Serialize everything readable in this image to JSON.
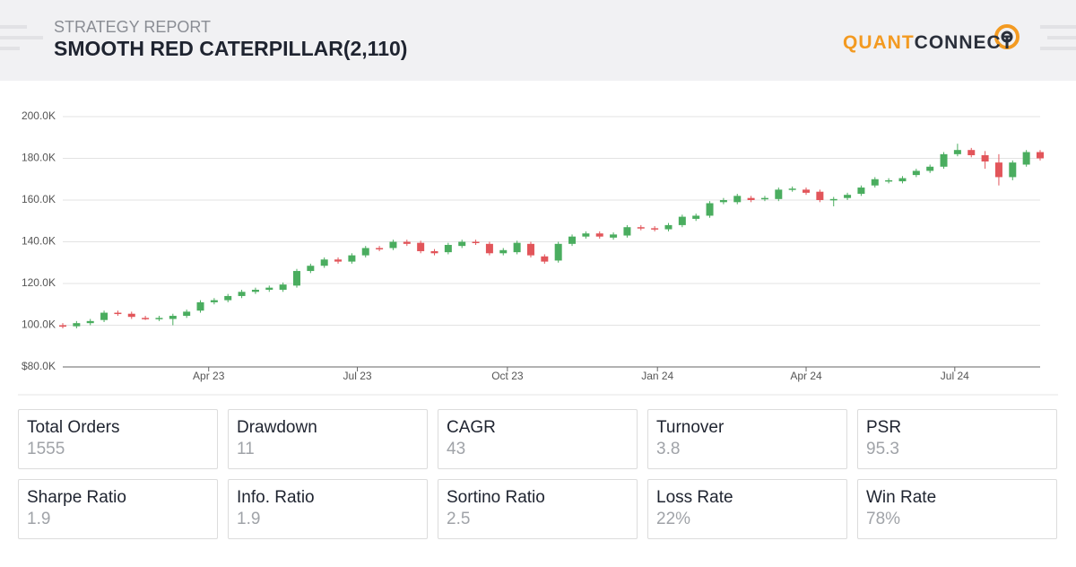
{
  "header": {
    "subtitle": "STRATEGY REPORT",
    "title": "SMOOTH RED CATERPILLAR(2,110)",
    "logo_a": "QUANT",
    "logo_b": "CONNECT"
  },
  "chart_data": {
    "type": "candlestick",
    "up_color": "#4aad5f",
    "down_color": "#e2555a",
    "grid": true,
    "x": [
      0,
      1,
      2,
      3,
      4,
      5,
      6,
      7,
      8,
      9,
      10,
      11,
      12,
      13,
      14,
      15,
      16,
      17,
      18,
      19,
      20,
      21,
      22,
      23,
      24,
      25,
      26,
      27,
      28,
      29,
      30,
      31,
      32,
      33,
      34,
      35,
      36,
      37,
      38,
      39,
      40,
      41,
      42,
      43,
      44,
      45,
      46,
      47,
      48,
      49,
      50,
      51,
      52,
      53,
      54,
      55,
      56,
      57,
      58,
      59,
      60,
      61,
      62,
      63,
      64,
      65,
      66,
      67,
      68,
      69,
      70,
      71
    ],
    "open": [
      100000,
      99500,
      101000,
      102500,
      106000,
      105500,
      103500,
      103000,
      103000,
      104500,
      107000,
      111000,
      112000,
      114000,
      116000,
      117000,
      117000,
      119000,
      126000,
      128500,
      131500,
      130500,
      133500,
      137000,
      137000,
      140000,
      139500,
      135500,
      135000,
      138000,
      140000,
      139000,
      134500,
      135000,
      139000,
      133000,
      131000,
      139000,
      142500,
      144000,
      142000,
      143000,
      147000,
      146500,
      146000,
      148000,
      151000,
      152500,
      159000,
      159000,
      161000,
      160500,
      160500,
      165000,
      165000,
      164000,
      160000,
      161000,
      163000,
      167000,
      169000,
      169000,
      172000,
      174000,
      176000,
      182000,
      184000,
      181500,
      178000,
      171000,
      177000,
      183000
    ],
    "high": [
      101000,
      102000,
      103000,
      107000,
      107000,
      106500,
      104500,
      104500,
      105500,
      107500,
      112000,
      113000,
      115000,
      117000,
      118000,
      119000,
      120500,
      127000,
      129500,
      132500,
      132500,
      134500,
      138000,
      138000,
      141000,
      141000,
      140500,
      136500,
      139500,
      141000,
      141000,
      140000,
      137000,
      140500,
      140000,
      134000,
      140000,
      143500,
      145000,
      145000,
      144500,
      148000,
      148000,
      147500,
      149000,
      153000,
      153500,
      159500,
      161000,
      163000,
      162000,
      162000,
      166000,
      166500,
      166000,
      165000,
      161500,
      163500,
      167000,
      171000,
      170500,
      171500,
      175000,
      177000,
      183000,
      187000,
      185000,
      183500,
      182000,
      179000,
      184000,
      184000
    ],
    "low": [
      98500,
      98500,
      100000,
      101500,
      104500,
      103000,
      102500,
      102000,
      100000,
      103500,
      106000,
      110000,
      111000,
      113000,
      115000,
      116000,
      116000,
      118000,
      125000,
      127500,
      129500,
      129500,
      132500,
      135500,
      136000,
      138000,
      134500,
      133500,
      134000,
      137000,
      138500,
      133500,
      133500,
      134000,
      132500,
      129500,
      130000,
      138000,
      141500,
      141500,
      141000,
      142000,
      145500,
      145000,
      145000,
      147000,
      150000,
      151500,
      158000,
      158000,
      159000,
      159500,
      159500,
      164000,
      162500,
      159000,
      157000,
      160000,
      162000,
      166000,
      168000,
      168000,
      171000,
      173000,
      175000,
      181000,
      180500,
      175000,
      167000,
      169500,
      176000,
      179000
    ],
    "close": [
      99300,
      101000,
      102000,
      106000,
      105500,
      104000,
      103000,
      103500,
      104500,
      106500,
      111000,
      112000,
      114000,
      116000,
      117000,
      118000,
      119500,
      126000,
      128500,
      131500,
      130500,
      133500,
      137000,
      136500,
      140000,
      139000,
      135500,
      134500,
      138500,
      140000,
      139500,
      134500,
      136000,
      139500,
      133500,
      130500,
      139000,
      142500,
      144000,
      142500,
      143500,
      147000,
      146500,
      146000,
      148000,
      152000,
      152500,
      158500,
      160000,
      162000,
      160000,
      161000,
      165000,
      165500,
      163500,
      160000,
      160500,
      162500,
      166000,
      170000,
      169500,
      170500,
      174000,
      176000,
      182000,
      184000,
      181500,
      178500,
      171000,
      178000,
      183000,
      180000
    ],
    "xlim": [
      0,
      71
    ],
    "xticks": [
      {
        "value": 10.6,
        "label": "Apr 23"
      },
      {
        "value": 21.4,
        "label": "Jul 23"
      },
      {
        "value": 32.3,
        "label": "Oct 23"
      },
      {
        "value": 43.2,
        "label": "Jan 24"
      },
      {
        "value": 54.0,
        "label": "Apr 24"
      },
      {
        "value": 64.8,
        "label": "Jul 24"
      }
    ],
    "ylim": [
      80000,
      200000
    ],
    "yticks": [
      {
        "value": 80000,
        "label": "$80.0K"
      },
      {
        "value": 100000,
        "label": "100.0K"
      },
      {
        "value": 120000,
        "label": "120.0K"
      },
      {
        "value": 140000,
        "label": "140.0K"
      },
      {
        "value": 160000,
        "label": "160.0K"
      },
      {
        "value": 180000,
        "label": "180.0K"
      },
      {
        "value": 200000,
        "label": "200.0K"
      }
    ]
  },
  "stats": [
    {
      "label": "Total Orders",
      "value": "1555"
    },
    {
      "label": "Drawdown",
      "value": "11"
    },
    {
      "label": "CAGR",
      "value": "43"
    },
    {
      "label": "Turnover",
      "value": "3.8"
    },
    {
      "label": "PSR",
      "value": "95.3"
    },
    {
      "label": "Sharpe Ratio",
      "value": "1.9"
    },
    {
      "label": "Info. Ratio",
      "value": "1.9"
    },
    {
      "label": "Sortino Ratio",
      "value": "2.5"
    },
    {
      "label": "Loss Rate",
      "value": "22%"
    },
    {
      "label": "Win Rate",
      "value": "78%"
    }
  ]
}
